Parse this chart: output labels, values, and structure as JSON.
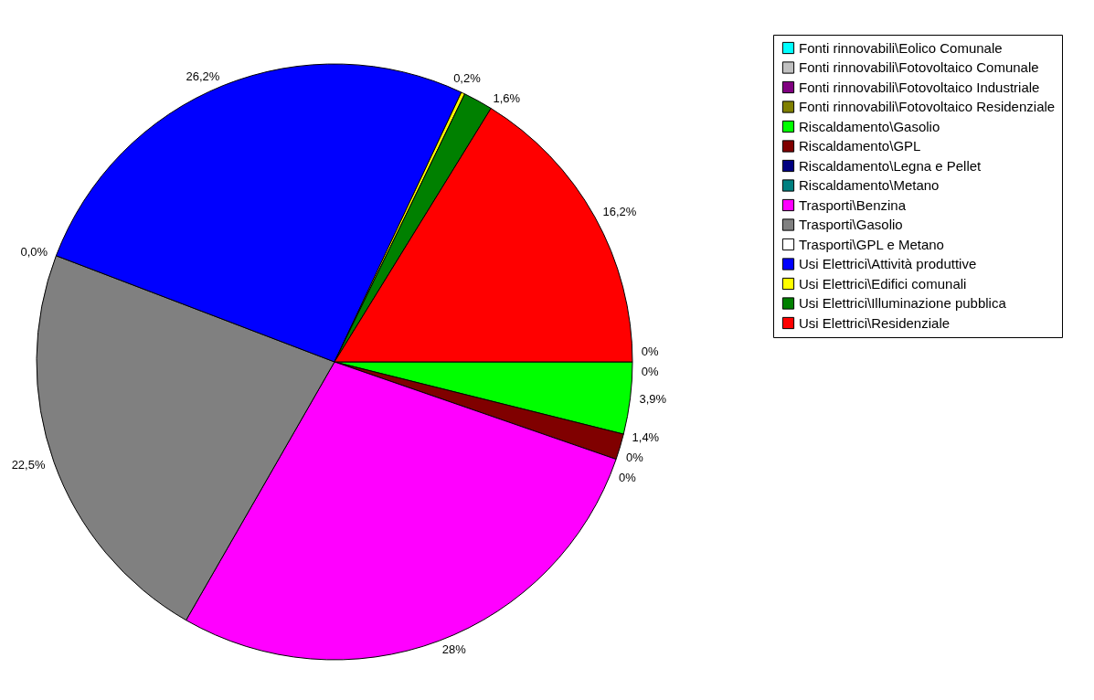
{
  "chart_data": {
    "type": "pie",
    "categories": [
      "Fonti rinnovabili\\Eolico Comunale",
      "Fonti rinnovabili\\Fotovoltaico Comunale",
      "Fonti rinnovabili\\Fotovoltaico Industriale",
      "Fonti rinnovabili\\Fotovoltaico Residenziale",
      "Riscaldamento\\Gasolio",
      "Riscaldamento\\GPL",
      "Riscaldamento\\Legna e Pellet",
      "Riscaldamento\\Metano",
      "Trasporti\\Benzina",
      "Trasporti\\Gasolio",
      "Trasporti\\GPL e Metano",
      "Usi Elettrici\\Attività produttive",
      "Usi Elettrici\\Edifici comunali",
      "Usi Elettrici\\Illuminazione pubblica",
      "Usi Elettrici\\Residenziale"
    ],
    "values": [
      0,
      0,
      0,
      0,
      3.9,
      1.4,
      0,
      0,
      28,
      22.5,
      0,
      26.2,
      0.2,
      1.6,
      16.2
    ],
    "colors": [
      "#00ffff",
      "#c0c0c0",
      "#800080",
      "#808000",
      "#00ff00",
      "#800000",
      "#000080",
      "#008080",
      "#ff00ff",
      "#808080",
      "#ffffff",
      "#0000ff",
      "#ffff00",
      "#008000",
      "#ff0000"
    ],
    "value_labels": [
      "0%",
      "0%",
      null,
      null,
      "3,9%",
      "1,4%",
      "0%",
      "0%",
      "28%",
      "22,5%",
      "0,0%",
      "26,2%",
      "0,2%",
      "1,6%",
      "16,2%"
    ],
    "legend": "top right"
  }
}
